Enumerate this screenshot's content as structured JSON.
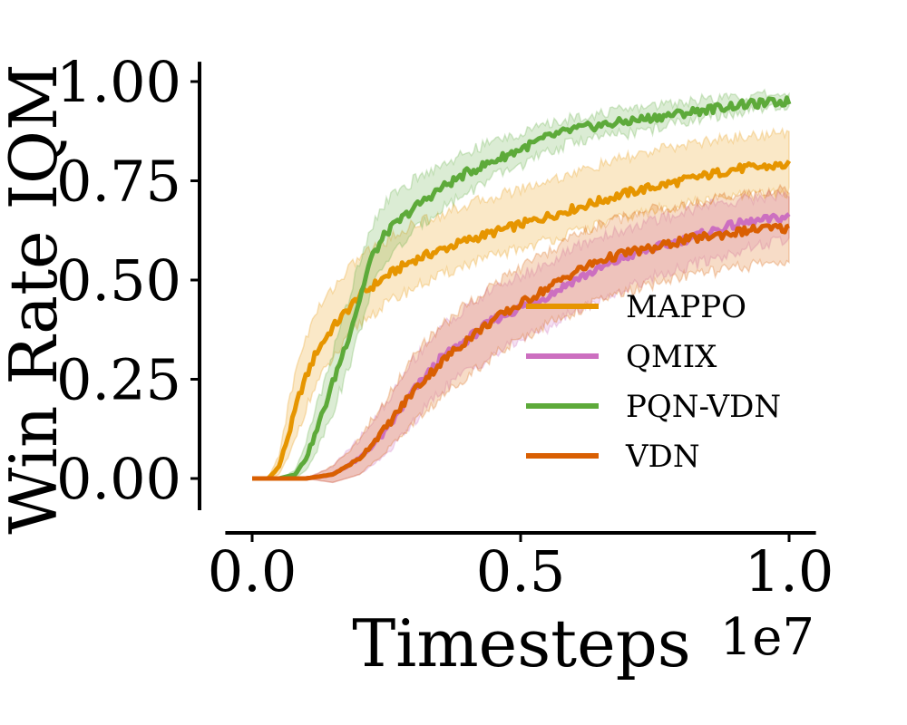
{
  "chart_data": {
    "type": "line",
    "title": "",
    "xlabel": "Timesteps",
    "ylabel": "Win Rate IQM",
    "x_offset_label": "1e7",
    "xlim": [
      -0.05,
      1.05
    ],
    "ylim": [
      -0.08,
      1.05
    ],
    "x_ticks": [
      0.0,
      0.5,
      1.0
    ],
    "x_tick_labels": [
      "0.0",
      "0.5",
      "1.0"
    ],
    "y_ticks": [
      0.0,
      0.25,
      0.5,
      0.75,
      1.0
    ],
    "y_tick_labels": [
      "0.00",
      "0.25",
      "0.50",
      "0.75",
      "1.00"
    ],
    "grid": false,
    "legend_position": "center-right",
    "series": [
      {
        "name": "MAPPO",
        "color": "#E69500",
        "x": [
          0.0,
          0.03,
          0.05,
          0.07,
          0.09,
          0.12,
          0.15,
          0.2,
          0.25,
          0.3,
          0.4,
          0.5,
          0.6,
          0.7,
          0.8,
          0.9,
          1.0
        ],
        "y": [
          0.0,
          0.0,
          0.03,
          0.12,
          0.22,
          0.32,
          0.38,
          0.46,
          0.51,
          0.55,
          0.6,
          0.64,
          0.68,
          0.72,
          0.75,
          0.78,
          0.79
        ],
        "y_low": [
          0.0,
          0.0,
          0.01,
          0.06,
          0.14,
          0.24,
          0.3,
          0.39,
          0.44,
          0.48,
          0.54,
          0.58,
          0.62,
          0.66,
          0.69,
          0.71,
          0.72
        ],
        "y_high": [
          0.0,
          0.0,
          0.06,
          0.2,
          0.32,
          0.42,
          0.48,
          0.56,
          0.6,
          0.64,
          0.69,
          0.73,
          0.77,
          0.81,
          0.84,
          0.86,
          0.87
        ]
      },
      {
        "name": "QMIX",
        "color": "#CC6FC0",
        "x": [
          0.0,
          0.1,
          0.15,
          0.2,
          0.25,
          0.3,
          0.35,
          0.4,
          0.45,
          0.5,
          0.55,
          0.6,
          0.65,
          0.7,
          0.75,
          0.8,
          0.85,
          0.9,
          0.95,
          1.0
        ],
        "y": [
          0.0,
          0.0,
          0.01,
          0.05,
          0.12,
          0.22,
          0.3,
          0.35,
          0.4,
          0.43,
          0.46,
          0.5,
          0.53,
          0.56,
          0.58,
          0.6,
          0.62,
          0.64,
          0.65,
          0.66
        ],
        "y_low": [
          0.0,
          0.0,
          -0.01,
          0.01,
          0.06,
          0.14,
          0.22,
          0.27,
          0.31,
          0.35,
          0.38,
          0.42,
          0.45,
          0.48,
          0.51,
          0.53,
          0.55,
          0.57,
          0.59,
          0.6
        ],
        "y_high": [
          0.0,
          0.0,
          0.03,
          0.1,
          0.19,
          0.3,
          0.38,
          0.43,
          0.48,
          0.51,
          0.54,
          0.58,
          0.61,
          0.63,
          0.65,
          0.67,
          0.69,
          0.7,
          0.71,
          0.72
        ]
      },
      {
        "name": "PQN-VDN",
        "color": "#5DAA3A",
        "x": [
          0.0,
          0.05,
          0.08,
          0.1,
          0.12,
          0.15,
          0.18,
          0.2,
          0.22,
          0.25,
          0.3,
          0.35,
          0.4,
          0.45,
          0.5,
          0.55,
          0.6,
          0.65,
          0.7,
          0.75,
          0.8,
          0.85,
          0.9,
          0.95,
          1.0
        ],
        "y": [
          0.0,
          0.0,
          0.01,
          0.05,
          0.12,
          0.24,
          0.36,
          0.45,
          0.55,
          0.62,
          0.68,
          0.73,
          0.77,
          0.8,
          0.83,
          0.86,
          0.88,
          0.89,
          0.9,
          0.91,
          0.92,
          0.93,
          0.94,
          0.945,
          0.95
        ],
        "y_low": [
          0.0,
          0.0,
          0.0,
          0.02,
          0.07,
          0.17,
          0.28,
          0.37,
          0.47,
          0.55,
          0.62,
          0.68,
          0.72,
          0.76,
          0.79,
          0.82,
          0.85,
          0.86,
          0.87,
          0.88,
          0.9,
          0.91,
          0.92,
          0.93,
          0.93
        ],
        "y_high": [
          0.0,
          0.0,
          0.02,
          0.09,
          0.18,
          0.32,
          0.45,
          0.55,
          0.63,
          0.7,
          0.75,
          0.79,
          0.82,
          0.85,
          0.87,
          0.89,
          0.91,
          0.92,
          0.93,
          0.94,
          0.95,
          0.955,
          0.96,
          0.965,
          0.97
        ]
      },
      {
        "name": "VDN",
        "color": "#D95F02",
        "x": [
          0.0,
          0.1,
          0.15,
          0.2,
          0.25,
          0.3,
          0.35,
          0.4,
          0.45,
          0.5,
          0.55,
          0.6,
          0.65,
          0.7,
          0.75,
          0.8,
          0.85,
          0.9,
          0.95,
          1.0
        ],
        "y": [
          0.0,
          0.0,
          0.01,
          0.05,
          0.13,
          0.22,
          0.29,
          0.35,
          0.4,
          0.44,
          0.48,
          0.52,
          0.55,
          0.57,
          0.58,
          0.6,
          0.61,
          0.62,
          0.63,
          0.63
        ],
        "y_low": [
          0.0,
          0.0,
          -0.01,
          0.01,
          0.07,
          0.14,
          0.2,
          0.26,
          0.31,
          0.35,
          0.39,
          0.42,
          0.45,
          0.47,
          0.49,
          0.51,
          0.52,
          0.53,
          0.54,
          0.55
        ],
        "y_high": [
          0.0,
          0.0,
          0.03,
          0.1,
          0.2,
          0.31,
          0.38,
          0.44,
          0.49,
          0.53,
          0.57,
          0.61,
          0.64,
          0.66,
          0.68,
          0.69,
          0.7,
          0.71,
          0.72,
          0.73
        ]
      }
    ]
  }
}
